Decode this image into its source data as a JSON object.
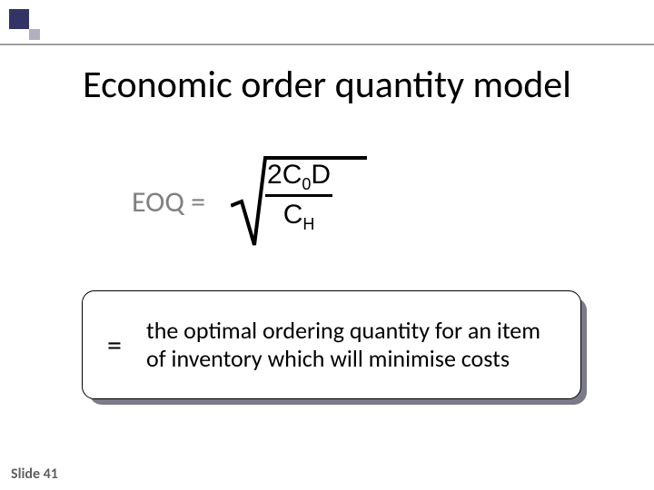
{
  "title": "Economic order quantity model",
  "eoq_label": "EOQ =",
  "formula": {
    "numerator_html": "2C<span class=\"sub\">0</span>D",
    "denominator_html": "C<span class=\"sub\">H</span>",
    "radical_color": "#000000",
    "bar_color": "#000000"
  },
  "definition": {
    "eq": "=",
    "text": "the optimal ordering quantity for an item of inventory which will minimise costs"
  },
  "slide_number": "Slide 41",
  "colors": {
    "accent_dark": "#333366",
    "accent_light": "#b0b0c0",
    "rule": "#a0a0a0",
    "muted_text": "#808080",
    "shadow": "#7a7a8a",
    "bg": "#ffffff"
  }
}
